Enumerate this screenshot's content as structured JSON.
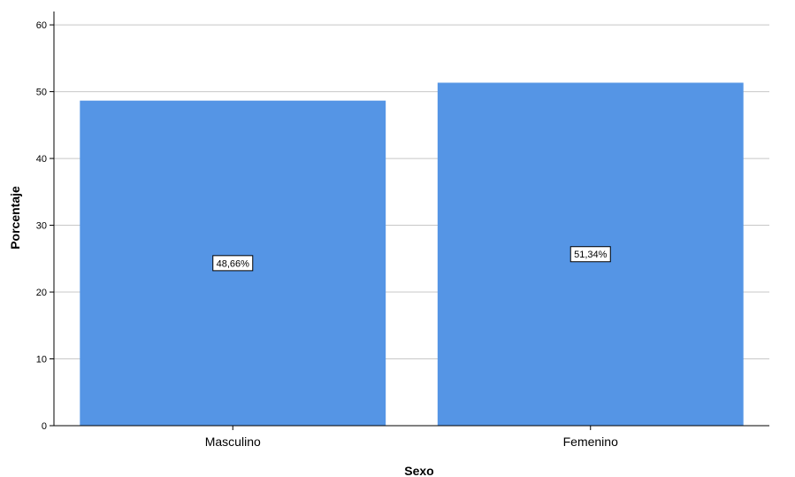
{
  "chart_data": {
    "type": "bar",
    "categories": [
      "Masculino",
      "Femenino"
    ],
    "values": [
      48.66,
      51.34
    ],
    "data_labels": [
      "48,66%",
      "51,34%"
    ],
    "xlabel": "Sexo",
    "ylabel": "Porcentaje",
    "ylim": [
      0,
      62
    ],
    "yticks": [
      0,
      10,
      20,
      30,
      40,
      50,
      60
    ],
    "grid": true,
    "legend": "none",
    "bar_color": "#5595e5"
  }
}
